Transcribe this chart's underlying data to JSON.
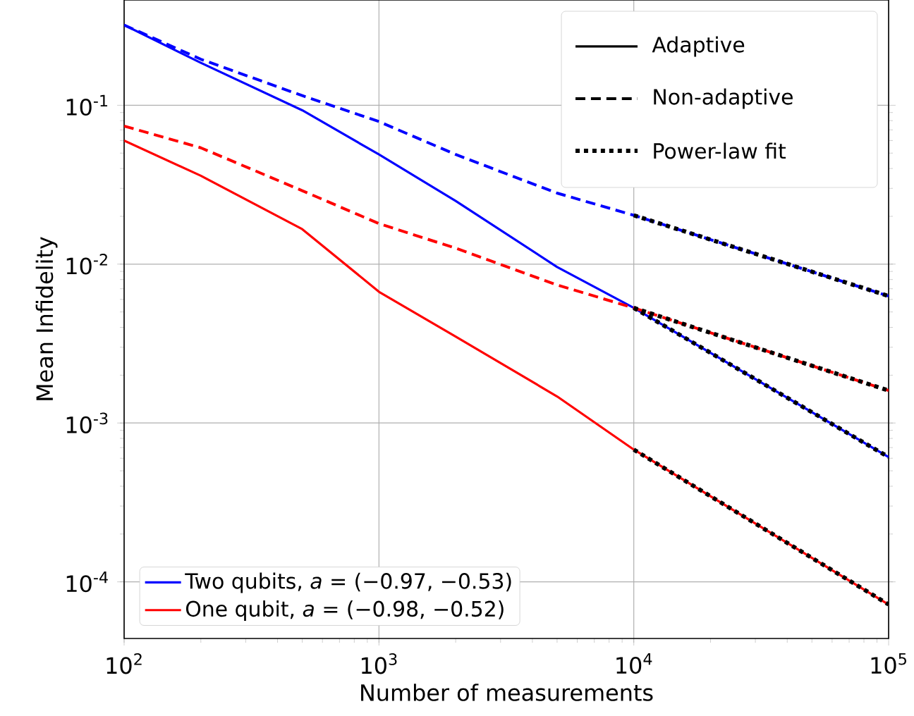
{
  "chart_data": {
    "type": "line",
    "xlabel": "Number of measurements",
    "ylabel": "Mean Infidelity",
    "log": "xy",
    "grid": true,
    "legend": "bottom left",
    "xlim": [
      100,
      100000
    ],
    "ylim": [
      4.4e-05,
      0.46
    ],
    "xticks": [
      {
        "value": 100,
        "label": "10$^{2}$"
      },
      {
        "value": 1000,
        "label": "10$^{3}$"
      },
      {
        "value": 10000,
        "label": "10$^{4}$"
      },
      {
        "value": 100000,
        "label": "10$^{5}$"
      }
    ],
    "yticks": [
      {
        "value": 0.0001,
        "label": "10$^{-4}$"
      },
      {
        "value": 0.001,
        "label": "10$^{-3}$"
      },
      {
        "value": 0.01,
        "label": "10$^{-2}$"
      },
      {
        "value": 0.1,
        "label": "10$^{-1}$"
      }
    ],
    "annotations": [
      "Adaptive",
      "Non-adaptive",
      "Power-law fit"
    ],
    "series": [
      {
        "name": "Two qubits, *a* = (−0.97, −0.53)",
        "color": "#0000ff",
        "line_style": "solid",
        "x": [
          100,
          200,
          500,
          1000,
          2000,
          5000,
          10000,
          100000
        ],
        "values": [
          0.32,
          0.185,
          0.093,
          0.049,
          0.025,
          0.0096,
          0.0053,
          0.00061
        ]
      },
      {
        "name": "One qubit, *a* = (−0.98, −0.52)",
        "color": "#ff0000",
        "line_style": "solid",
        "x": [
          100,
          200,
          500,
          1000,
          2000,
          5000,
          10000,
          100000
        ],
        "values": [
          0.06,
          0.036,
          0.0166,
          0.0067,
          0.0035,
          0.00147,
          0.00068,
          7.2e-05
        ]
      },
      {
        "color": "#0000ff",
        "line_style": "dashed",
        "x": [
          100,
          200,
          500,
          1000,
          2000,
          5000,
          10000,
          100000
        ],
        "values": [
          0.32,
          0.195,
          0.115,
          0.079,
          0.049,
          0.028,
          0.0203,
          0.0063
        ]
      },
      {
        "color": "#ff0000",
        "line_style": "dashed",
        "x": [
          100,
          200,
          500,
          1000,
          2000,
          5000,
          10000,
          100000
        ],
        "values": [
          0.074,
          0.054,
          0.029,
          0.018,
          0.0126,
          0.0074,
          0.0053,
          0.0016
        ]
      },
      {
        "color": "#000000",
        "line_style": "dotted",
        "x": [
          10000,
          100000
        ],
        "values": [
          0.0053,
          0.00061
        ]
      },
      {
        "color": "#000000",
        "line_style": "dotted",
        "x": [
          10000,
          100000
        ],
        "values": [
          0.00068,
          7.2e-05
        ]
      },
      {
        "color": "#000000",
        "line_style": "dotted",
        "x": [
          10000,
          100000
        ],
        "values": [
          0.0203,
          0.0063
        ]
      },
      {
        "color": "#000000",
        "line_style": "dotted",
        "x": [
          10000,
          100000
        ],
        "values": [
          0.0053,
          0.0016
        ]
      }
    ]
  }
}
